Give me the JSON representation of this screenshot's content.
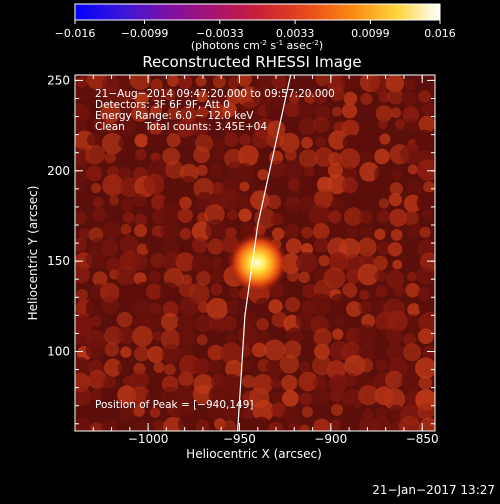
{
  "colorbar": {
    "ticks": [
      "-0.016",
      "-0.0099",
      "-0.0033",
      "0.0033",
      "0.0099",
      "0.016"
    ],
    "tick_values": [
      -0.016,
      -0.0099,
      -0.0033,
      0.0033,
      0.0099,
      0.016
    ],
    "range": [
      -0.016,
      0.016
    ],
    "units_prefix": "(photons cm",
    "units_sup1": "-2",
    "units_mid": " s",
    "units_sup2": "-1",
    "units_mid2": " asec",
    "units_sup3": "-2",
    "units_suffix": ")"
  },
  "info": {
    "line1": "21−Aug−2014 09:47:20.000 to 09:57:20.000",
    "line2": "Detectors: 3F 6F 9F, Att 0",
    "line3": "Energy Range: 6.0 − 12.0 keV",
    "line4_a": "Clean",
    "line4_b": "Total counts: 3.45E+04"
  },
  "peak_label": "Position of Peak = [−940,149]",
  "footer_date": "21−Jan−2017 13:27",
  "chart_data": {
    "type": "heatmap",
    "title": "Reconstructed RHESSI Image",
    "xlabel": "Heliocentric X (arcsec)",
    "ylabel": "Heliocentric Y (arcsec)",
    "xlim": [
      -1040,
      -843
    ],
    "ylim": [
      56,
      253
    ],
    "x_ticks": [
      -1000,
      -950,
      -900,
      -850
    ],
    "x_tick_labels": [
      "−1000",
      "−950",
      "−900",
      "−850"
    ],
    "y_ticks": [
      100,
      150,
      200,
      250
    ],
    "y_tick_labels": [
      "100",
      "150",
      "200",
      "250"
    ],
    "peak": {
      "x": -940,
      "y": 149
    },
    "grid": false,
    "colormap": "hot",
    "limb_curve": [
      [
        -922,
        253
      ],
      [
        -940,
        170
      ],
      [
        -947,
        120
      ],
      [
        -951,
        56
      ]
    ]
  }
}
